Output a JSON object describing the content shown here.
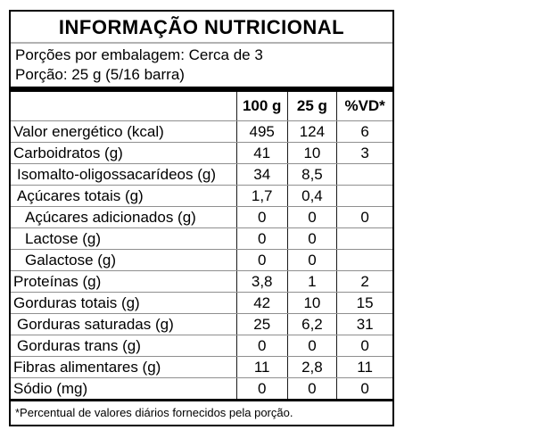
{
  "label": {
    "title": "INFORMAÇÃO NUTRICIONAL",
    "servings_line": "Porções por embalagem: Cerca de 3",
    "portion_line": "Porção: 25 g (5/16 barra)",
    "columns": {
      "per100g": "100 g",
      "per25g": "25 g",
      "vd": "%VD*"
    },
    "rows": [
      {
        "name": "Valor energético (kcal)",
        "indent": 0,
        "per100g": "495",
        "per25g": "124",
        "vd": "6"
      },
      {
        "name": "Carboidratos (g)",
        "indent": 0,
        "per100g": "41",
        "per25g": "10",
        "vd": "3"
      },
      {
        "name": "Isomalto-oligossacarídeos (g)",
        "indent": 1,
        "per100g": "34",
        "per25g": "8,5",
        "vd": ""
      },
      {
        "name": "Açúcares totais (g)",
        "indent": 1,
        "per100g": "1,7",
        "per25g": "0,4",
        "vd": ""
      },
      {
        "name": "Açúcares adicionados (g)",
        "indent": 2,
        "per100g": "0",
        "per25g": "0",
        "vd": "0"
      },
      {
        "name": "Lactose (g)",
        "indent": 2,
        "per100g": "0",
        "per25g": "0",
        "vd": ""
      },
      {
        "name": "Galactose (g)",
        "indent": 2,
        "per100g": "0",
        "per25g": "0",
        "vd": ""
      },
      {
        "name": "Proteínas (g)",
        "indent": 0,
        "per100g": "3,8",
        "per25g": "1",
        "vd": "2"
      },
      {
        "name": "Gorduras totais (g)",
        "indent": 0,
        "per100g": "42",
        "per25g": "10",
        "vd": "15"
      },
      {
        "name": "Gorduras saturadas (g)",
        "indent": 1,
        "per100g": "25",
        "per25g": "6,2",
        "vd": "31"
      },
      {
        "name": "Gorduras trans (g)",
        "indent": 1,
        "per100g": "0",
        "per25g": "0",
        "vd": "0"
      },
      {
        "name": "Fibras alimentares (g)",
        "indent": 0,
        "per100g": "11",
        "per25g": "2,8",
        "vd": "11"
      },
      {
        "name": "Sódio (mg)",
        "indent": 0,
        "per100g": "0",
        "per25g": "0",
        "vd": "0"
      }
    ],
    "footnote": "*Percentual de valores diários fornecidos pela porção.",
    "colors": {
      "border": "#000000",
      "row_line": "#8f8f8f",
      "title_line": "#b2b2b2"
    }
  }
}
